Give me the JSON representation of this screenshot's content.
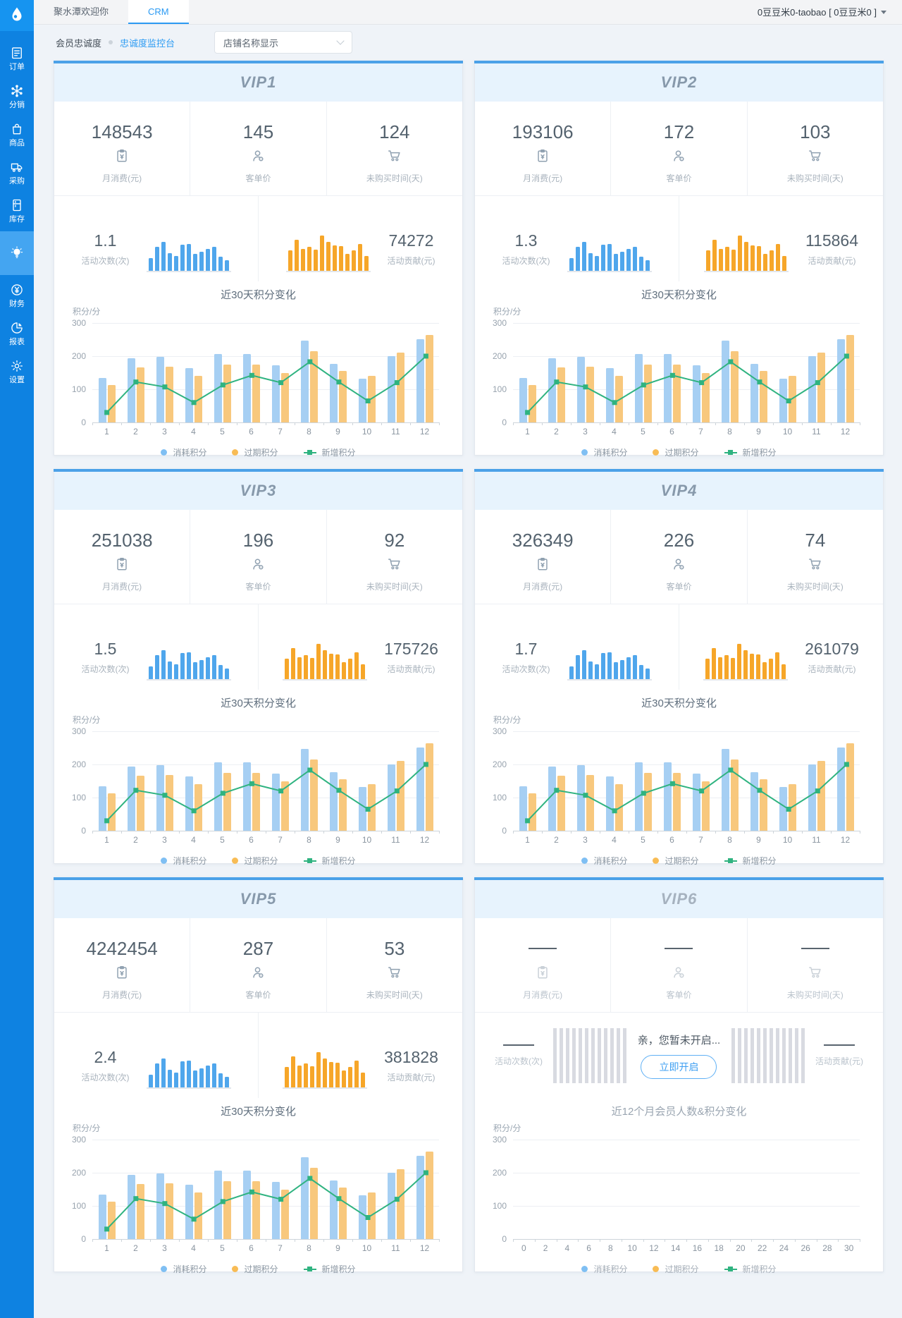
{
  "colors": {
    "sidebar": "#0E82E1",
    "sidebar_active": "#44A5F1",
    "accent_strip": "#4BA1E8",
    "card_header_bg": "#E7F3FD",
    "tab_active": "#2B9AF3",
    "link": "#2E9CF3",
    "bar_blue": "#A6CFF3",
    "bar_orange": "#F8C87D",
    "line_green": "#2FB380",
    "mini_blue": "#4FA6EC",
    "mini_orange": "#F6A629",
    "legend_dot_blue": "#7FBFF3",
    "legend_dot_orange": "#F8BC55"
  },
  "topbar": {
    "tabs": [
      {
        "label": "聚水潭欢迎你",
        "active": false
      },
      {
        "label": "CRM",
        "active": true
      }
    ],
    "account": "0豆豆米0-taobao [ 0豆豆米0 ]"
  },
  "sidebar": {
    "items": [
      {
        "icon": "order-icon",
        "label": "订单",
        "active": false
      },
      {
        "icon": "distribution-icon",
        "label": "分销",
        "active": false
      },
      {
        "icon": "goods-icon",
        "label": "商品",
        "active": false
      },
      {
        "icon": "purchase-icon",
        "label": "采购",
        "active": false
      },
      {
        "icon": "inventory-icon",
        "label": "库存",
        "active": false
      },
      {
        "icon": "bulb-icon",
        "label": "",
        "active": true
      },
      {
        "icon": "finance-icon",
        "label": "财务",
        "active": false
      },
      {
        "icon": "report-icon",
        "label": "报表",
        "active": false
      },
      {
        "icon": "settings-icon",
        "label": "设置",
        "active": false
      }
    ]
  },
  "breadcrumb": {
    "section": "会员忠诚度",
    "page": "忠诚度监控台"
  },
  "store_select": {
    "value": "店铺名称显示"
  },
  "stat_labels": [
    "月消费(元)",
    "客单价",
    "未购买时间(天)"
  ],
  "stat_icons": [
    "invoice-icon",
    "customer-icon",
    "cart-icon"
  ],
  "middle_labels": {
    "activity": "活动次数(次)",
    "contribution": "活动贡献(元)"
  },
  "cards": [
    {
      "title": "VIP1",
      "enabled": true,
      "monthly_spend": "148543",
      "unit_price": "145",
      "no_purchase_days": "124",
      "activity_count": "1.1",
      "activity_value": "74272"
    },
    {
      "title": "VIP2",
      "enabled": true,
      "monthly_spend": "193106",
      "unit_price": "172",
      "no_purchase_days": "103",
      "activity_count": "1.3",
      "activity_value": "115864"
    },
    {
      "title": "VIP3",
      "enabled": true,
      "monthly_spend": "251038",
      "unit_price": "196",
      "no_purchase_days": "92",
      "activity_count": "1.5",
      "activity_value": "175726"
    },
    {
      "title": "VIP4",
      "enabled": true,
      "monthly_spend": "326349",
      "unit_price": "226",
      "no_purchase_days": "74",
      "activity_count": "1.7",
      "activity_value": "261079"
    },
    {
      "title": "VIP5",
      "enabled": true,
      "monthly_spend": "4242454",
      "unit_price": "287",
      "no_purchase_days": "53",
      "activity_count": "2.4",
      "activity_value": "381828"
    },
    {
      "title": "VIP6",
      "enabled": false,
      "empty_message": "亲，您暂未开启...",
      "open_button": "立即开启"
    }
  ],
  "mini_charts": {
    "activity": {
      "color": "#4FA6EC",
      "max": 100,
      "values": [
        35,
        65,
        78,
        48,
        40,
        72,
        73,
        46,
        52,
        60,
        65,
        38,
        28
      ]
    },
    "contribution": {
      "color": "#F6A629",
      "max": 100,
      "values": [
        55,
        85,
        60,
        65,
        58,
        96,
        78,
        70,
        68,
        46,
        56,
        74,
        40
      ]
    }
  },
  "chart_data": [
    {
      "id": "loyalty30",
      "type": "bar+line",
      "title": "近30天积分变化",
      "ylabel": "积分/分",
      "ylim": [
        0,
        300
      ],
      "yticks": [
        0,
        100,
        200,
        300
      ],
      "grid": true,
      "legend_position": "bottom",
      "applies_to": [
        "VIP1",
        "VIP2",
        "VIP3",
        "VIP4",
        "VIP5"
      ],
      "categories": [
        1,
        2,
        3,
        4,
        5,
        6,
        7,
        8,
        9,
        10,
        11,
        12
      ],
      "series": [
        {
          "name": "消耗积分",
          "type": "bar",
          "color": "#A6CFF3",
          "legend_color": "#7FBFF3",
          "values": [
            135,
            193,
            198,
            163,
            206,
            206,
            172,
            247,
            176,
            133,
            200,
            252
          ]
        },
        {
          "name": "过期积分",
          "type": "bar",
          "color": "#F8C87D",
          "legend_color": "#F8BC55",
          "values": [
            113,
            165,
            168,
            140,
            175,
            175,
            150,
            215,
            155,
            140,
            210,
            265
          ]
        },
        {
          "name": "新增积分",
          "type": "line",
          "color": "#2FB380",
          "legend_color": "#2FB380",
          "values": [
            30,
            122,
            107,
            60,
            113,
            142,
            120,
            183,
            122,
            65,
            120,
            200
          ]
        }
      ]
    },
    {
      "id": "vip6-empty",
      "type": "bar+line",
      "title": "近12个月会员人数&积分变化",
      "ylabel": "积分/分",
      "ylim": [
        0,
        300
      ],
      "yticks": [
        0,
        100,
        200,
        300
      ],
      "grid": true,
      "legend_position": "bottom",
      "applies_to": [
        "VIP6"
      ],
      "categories": [
        0,
        2,
        4,
        6,
        8,
        10,
        12,
        14,
        16,
        18,
        20,
        22,
        24,
        26,
        28,
        30
      ],
      "series": [
        {
          "name": "消耗积分",
          "type": "bar",
          "color": "#A6CFF3",
          "legend_color": "#7FBFF3",
          "values": []
        },
        {
          "name": "过期积分",
          "type": "bar",
          "color": "#F8C87D",
          "legend_color": "#F8BC55",
          "values": []
        },
        {
          "name": "新增积分",
          "type": "line",
          "color": "#2FB380",
          "legend_color": "#2FB380",
          "values": []
        }
      ]
    }
  ]
}
